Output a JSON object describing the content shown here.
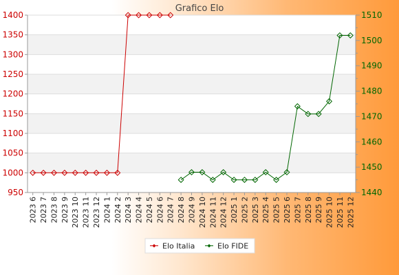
{
  "chart_data": {
    "type": "line",
    "title": "Grafico Elo",
    "categories": [
      "2023 6",
      "2023 7",
      "2023 8",
      "2023 9",
      "2023 10",
      "2023 11",
      "2023 12",
      "2024 1",
      "2024 2",
      "2024 3",
      "2024 4",
      "2024 5",
      "2024 6",
      "2024 7",
      "2024 8",
      "2024 9",
      "2024 10",
      "2024 11",
      "2024 12",
      "2025 1",
      "2025 2",
      "2025 3",
      "2025 4",
      "2025 5",
      "2025 6",
      "2025 7",
      "2025 8",
      "2025 9",
      "2025 10",
      "2025 11",
      "2025 12"
    ],
    "series": [
      {
        "name": "Elo Italia",
        "axis": "left",
        "color": "#cc0000",
        "values": [
          1000,
          1000,
          1000,
          1000,
          1000,
          1000,
          1000,
          1000,
          1000,
          1400,
          1400,
          1400,
          1400,
          1400,
          null,
          null,
          null,
          null,
          null,
          null,
          null,
          null,
          null,
          null,
          null,
          null,
          null,
          null,
          null,
          null,
          null
        ]
      },
      {
        "name": "Elo FIDE",
        "axis": "right",
        "color": "#006600",
        "values": [
          null,
          null,
          null,
          null,
          null,
          null,
          null,
          null,
          null,
          null,
          null,
          null,
          null,
          null,
          1445,
          1448,
          1448,
          1445,
          1448,
          1445,
          1445,
          1445,
          1448,
          1445,
          1448,
          1474,
          1471,
          1471,
          1476,
          1502,
          1502
        ]
      }
    ],
    "y_left": {
      "min": 950,
      "max": 1400,
      "ticks": [
        950,
        1000,
        1050,
        1100,
        1150,
        1200,
        1250,
        1300,
        1350,
        1400
      ],
      "color": "#cc0000"
    },
    "y_right": {
      "min": 1440,
      "max": 1510,
      "ticks": [
        1440,
        1450,
        1460,
        1470,
        1480,
        1490,
        1500,
        1510
      ],
      "color": "#006600"
    },
    "grid": true,
    "legend_position": "bottom",
    "background_bands": [
      "#ffffff",
      "#f2f2f2"
    ]
  }
}
